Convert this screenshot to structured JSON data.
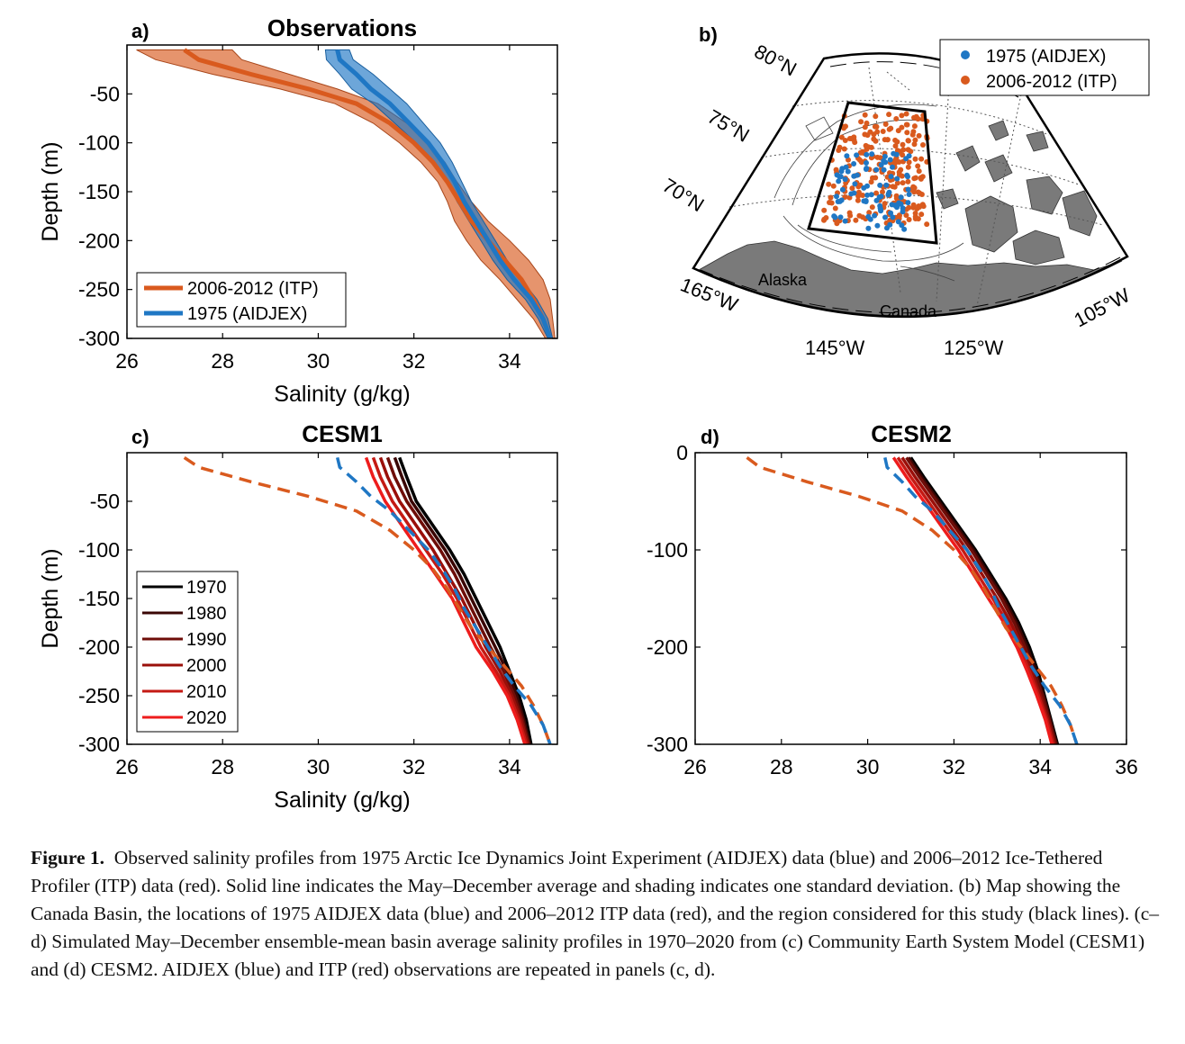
{
  "colors": {
    "aidjex": "#1f77c4",
    "itp": "#d95a1e",
    "land": "#7a7a7a"
  },
  "caption": {
    "label": "Figure 1.",
    "text": "Observed salinity profiles from 1975 Arctic Ice Dynamics Joint Experiment (AIDJEX) data (blue) and 2006–2012 Ice-Tethered Profiler (ITP) data (red). Solid line indicates the May–December average and shading indicates one standard deviation. (b) Map showing the Canada Basin, the locations of 1975 AIDJEX data (blue) and 2006–2012 ITP data (red), and the region considered for this study (black lines). (c–d) Simulated May–December ensemble-mean basin average salinity profiles in 1970–2020 from (c) Community Earth System Model (CESM1) and (d) CESM2. AIDJEX (blue) and ITP (red) observations are repeated in panels (c, d)."
  },
  "map": {
    "panel_label": "b)",
    "lat_labels": [
      "80°N",
      "75°N",
      "70°N"
    ],
    "lon_labels": [
      "165°W",
      "145°W",
      "125°W",
      "105°W"
    ],
    "place_labels": [
      "Alaska",
      "Canada"
    ],
    "legend": [
      "1975 (AIDJEX)",
      "2006-2012 (ITP)"
    ]
  },
  "chart_data": [
    {
      "panel": "a)",
      "type": "line",
      "title": "Observations",
      "xlabel": "Salinity (g/kg)",
      "ylabel": "Depth (m)",
      "xlim": [
        26,
        35
      ],
      "ylim": [
        -300,
        0
      ],
      "xticks": [
        "26",
        "28",
        "30",
        "32",
        "34"
      ],
      "yticks": [
        "-50",
        "-100",
        "-150",
        "-200",
        "-250",
        "-300"
      ],
      "legend_position": "bottom-left",
      "series": [
        {
          "name": "2006-2012 (ITP)",
          "color": "#d95a1e",
          "shaded": true,
          "depth": [
            -5,
            -15,
            -30,
            -45,
            -60,
            -80,
            -100,
            -120,
            -140,
            -160,
            -180,
            -200,
            -220,
            -240,
            -260,
            -280,
            -300
          ],
          "mean": [
            27.2,
            27.5,
            28.6,
            29.8,
            30.8,
            31.5,
            32.0,
            32.4,
            32.7,
            32.95,
            33.2,
            33.55,
            33.9,
            34.25,
            34.5,
            34.7,
            34.85
          ],
          "std": [
            1.0,
            0.9,
            0.8,
            0.6,
            0.45,
            0.35,
            0.3,
            0.25,
            0.2,
            0.25,
            0.35,
            0.45,
            0.5,
            0.45,
            0.35,
            0.2,
            0.1
          ]
        },
        {
          "name": "1975 (AIDJEX)",
          "color": "#1f77c4",
          "shaded": true,
          "depth": [
            -5,
            -15,
            -30,
            -45,
            -60,
            -80,
            -100,
            -120,
            -140,
            -160,
            -180,
            -200,
            -220,
            -240,
            -260,
            -280,
            -300
          ],
          "mean": [
            30.4,
            30.45,
            30.8,
            31.1,
            31.5,
            31.9,
            32.3,
            32.6,
            32.85,
            33.05,
            33.3,
            33.55,
            33.8,
            34.1,
            34.45,
            34.7,
            34.85
          ],
          "std": [
            0.25,
            0.28,
            0.35,
            0.4,
            0.35,
            0.3,
            0.25,
            0.2,
            0.15,
            0.15,
            0.15,
            0.15,
            0.15,
            0.15,
            0.12,
            0.1,
            0.05
          ]
        }
      ]
    },
    {
      "panel": "c)",
      "type": "line",
      "title": "CESM1",
      "xlabel": "Salinity (g/kg)",
      "ylabel": "Depth (m)",
      "xlim": [
        26,
        35
      ],
      "ylim": [
        -300,
        0
      ],
      "xticks": [
        "26",
        "28",
        "30",
        "32",
        "34"
      ],
      "yticks": [
        "-50",
        "-100",
        "-150",
        "-200",
        "-250",
        "-300"
      ],
      "legend_position": "bottom-left",
      "depth": [
        -5,
        -25,
        -50,
        -75,
        -100,
        -125,
        -150,
        -175,
        -200,
        -225,
        -250,
        -275,
        -300
      ],
      "series": [
        {
          "name": "1970",
          "color": "#000000",
          "salinity": [
            31.7,
            31.85,
            32.05,
            32.4,
            32.75,
            33.05,
            33.3,
            33.55,
            33.8,
            34.0,
            34.2,
            34.35,
            34.45
          ]
        },
        {
          "name": "1980",
          "color": "#3a0604",
          "salinity": [
            31.6,
            31.75,
            31.95,
            32.3,
            32.65,
            32.95,
            33.2,
            33.45,
            33.7,
            33.95,
            34.15,
            34.3,
            34.42
          ]
        },
        {
          "name": "1990",
          "color": "#6e0d08",
          "salinity": [
            31.45,
            31.6,
            31.85,
            32.2,
            32.55,
            32.85,
            33.1,
            33.35,
            33.6,
            33.88,
            34.1,
            34.27,
            34.4
          ]
        },
        {
          "name": "2000",
          "color": "#9a0f0a",
          "salinity": [
            31.3,
            31.45,
            31.7,
            32.05,
            32.4,
            32.7,
            33.0,
            33.25,
            33.5,
            33.8,
            34.05,
            34.24,
            34.38
          ]
        },
        {
          "name": "2010",
          "color": "#c41a14",
          "salinity": [
            31.15,
            31.3,
            31.55,
            31.9,
            32.25,
            32.6,
            32.9,
            33.15,
            33.4,
            33.72,
            34.0,
            34.2,
            34.35
          ]
        },
        {
          "name": "2020",
          "color": "#ee1c1c",
          "salinity": [
            31.0,
            31.15,
            31.4,
            31.75,
            32.1,
            32.45,
            32.8,
            33.05,
            33.3,
            33.65,
            33.95,
            34.16,
            34.32
          ]
        },
        {
          "name": "ITP",
          "color": "#d95a1e",
          "dashed": true,
          "depth": [
            -5,
            -15,
            -30,
            -45,
            -60,
            -80,
            -100,
            -120,
            -140,
            -160,
            -180,
            -200,
            -220,
            -240,
            -260,
            -280,
            -300
          ],
          "salinity": [
            27.2,
            27.5,
            28.6,
            29.8,
            30.8,
            31.5,
            32.0,
            32.4,
            32.7,
            32.95,
            33.2,
            33.55,
            33.9,
            34.25,
            34.5,
            34.7,
            34.85
          ]
        },
        {
          "name": "AIDJEX",
          "color": "#1f77c4",
          "dashed": true,
          "depth": [
            -5,
            -15,
            -30,
            -45,
            -60,
            -80,
            -100,
            -120,
            -140,
            -160,
            -180,
            -200,
            -220,
            -240,
            -260,
            -280,
            -300
          ],
          "salinity": [
            30.4,
            30.45,
            30.8,
            31.1,
            31.5,
            31.9,
            32.3,
            32.6,
            32.85,
            33.05,
            33.3,
            33.55,
            33.8,
            34.1,
            34.45,
            34.7,
            34.85
          ]
        }
      ]
    },
    {
      "panel": "d)",
      "type": "line",
      "title": "CESM2",
      "xlabel": "",
      "ylabel": "",
      "xlim": [
        26,
        36
      ],
      "ylim": [
        -300,
        0
      ],
      "xticks": [
        "26",
        "28",
        "30",
        "32",
        "34",
        "36"
      ],
      "yticks": [
        "0",
        "-100",
        "-200",
        "-300"
      ],
      "depth": [
        -5,
        -25,
        -50,
        -75,
        -100,
        -125,
        -150,
        -175,
        -200,
        -225,
        -250,
        -275,
        -300
      ],
      "series": [
        {
          "name": "1970",
          "color": "#000000",
          "salinity": [
            31.0,
            31.3,
            31.7,
            32.1,
            32.5,
            32.85,
            33.2,
            33.5,
            33.75,
            33.95,
            34.1,
            34.25,
            34.4
          ]
        },
        {
          "name": "1980",
          "color": "#3a0604",
          "salinity": [
            30.95,
            31.25,
            31.65,
            32.05,
            32.45,
            32.8,
            33.15,
            33.45,
            33.7,
            33.9,
            34.08,
            34.23,
            34.38
          ]
        },
        {
          "name": "1990",
          "color": "#6e0d08",
          "salinity": [
            30.9,
            31.2,
            31.6,
            32.0,
            32.4,
            32.75,
            33.1,
            33.4,
            33.65,
            33.86,
            34.05,
            34.21,
            34.36
          ]
        },
        {
          "name": "2000",
          "color": "#9a0f0a",
          "salinity": [
            30.8,
            31.1,
            31.5,
            31.9,
            32.3,
            32.65,
            33.0,
            33.32,
            33.58,
            33.8,
            34.0,
            34.18,
            34.33
          ]
        },
        {
          "name": "2010",
          "color": "#c41a14",
          "salinity": [
            30.7,
            31.0,
            31.4,
            31.8,
            32.2,
            32.55,
            32.9,
            33.24,
            33.52,
            33.75,
            33.96,
            34.15,
            34.3
          ]
        },
        {
          "name": "2020",
          "color": "#ee1c1c",
          "salinity": [
            30.6,
            30.9,
            31.3,
            31.7,
            32.1,
            32.45,
            32.8,
            33.16,
            33.46,
            33.7,
            33.92,
            34.12,
            34.27
          ]
        },
        {
          "name": "ITP",
          "color": "#d95a1e",
          "dashed": true,
          "depth": [
            -5,
            -15,
            -30,
            -45,
            -60,
            -80,
            -100,
            -120,
            -140,
            -160,
            -180,
            -200,
            -220,
            -240,
            -260,
            -280,
            -300
          ],
          "salinity": [
            27.2,
            27.5,
            28.6,
            29.8,
            30.8,
            31.5,
            32.0,
            32.4,
            32.7,
            32.95,
            33.2,
            33.55,
            33.9,
            34.25,
            34.5,
            34.7,
            34.85
          ]
        },
        {
          "name": "AIDJEX",
          "color": "#1f77c4",
          "dashed": true,
          "depth": [
            -5,
            -15,
            -30,
            -45,
            -60,
            -80,
            -100,
            -120,
            -140,
            -160,
            -180,
            -200,
            -220,
            -240,
            -260,
            -280,
            -300
          ],
          "salinity": [
            30.4,
            30.45,
            30.8,
            31.1,
            31.5,
            31.9,
            32.3,
            32.6,
            32.85,
            33.05,
            33.3,
            33.55,
            33.8,
            34.1,
            34.45,
            34.7,
            34.85
          ]
        }
      ]
    }
  ]
}
